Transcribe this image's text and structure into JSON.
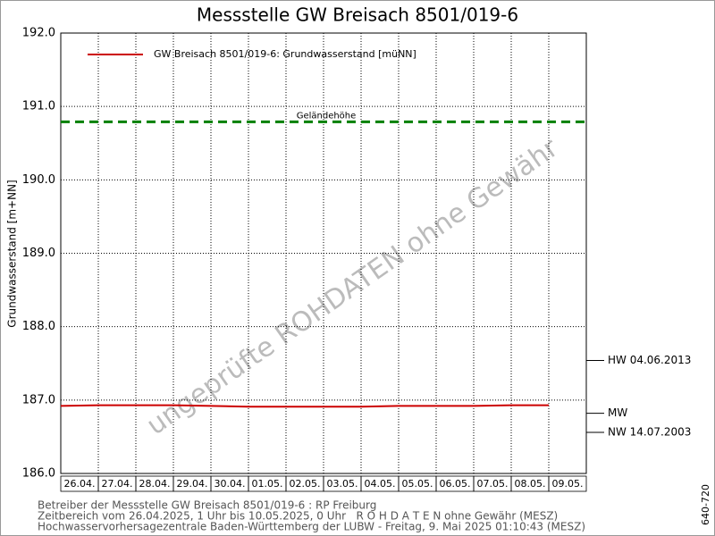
{
  "chart_data": {
    "type": "line",
    "title": "Messstelle GW Breisach 8501/019-6",
    "y_label": "Grundwasserstand [m+NN]",
    "categories": [
      "26.04.",
      "27.04.",
      "28.04.",
      "29.04.",
      "30.04.",
      "01.05.",
      "02.05.",
      "03.05.",
      "04.05.",
      "05.05.",
      "06.05.",
      "07.05.",
      "08.05.",
      "09.05."
    ],
    "series": [
      {
        "name": "GW Breisach 8501/019-6: Grundwasserstand [müNN]",
        "color": "#cc0000",
        "values": [
          186.92,
          186.93,
          186.93,
          186.93,
          186.92,
          186.91,
          186.91,
          186.91,
          186.91,
          186.92,
          186.92,
          186.92,
          186.93,
          186.93
        ]
      }
    ],
    "ylim": [
      186.0,
      192.0
    ],
    "yticks": [
      {
        "value": 186,
        "label": "186.0"
      },
      {
        "value": 187,
        "label": "187.0"
      },
      {
        "value": 188,
        "label": "188.0"
      },
      {
        "value": 189,
        "label": "189.0"
      },
      {
        "value": 190,
        "label": "190.0"
      },
      {
        "value": 191,
        "label": "191.0"
      },
      {
        "value": 192,
        "label": "192.0"
      }
    ],
    "grid": true,
    "reference_line": {
      "label": "Geländehöhe",
      "value": 190.79,
      "color": "#008000"
    },
    "markers": [
      {
        "label": "HW 04.06.2013",
        "value": 187.54
      },
      {
        "label": "MW",
        "value": 186.82
      },
      {
        "label": "NW 14.07.2003",
        "value": 186.56
      }
    ],
    "watermark": "ungeprüfte ROHDATEN ohne Gewähr",
    "footer": [
      "Betreiber der Messstelle GW Breisach 8501/019-6 : RP Freiburg",
      "Zeitbereich vom 26.04.2025, 1 Uhr bis 10.05.2025, 0 Uhr   R O H D A T E N ohne Gewähr (MESZ)",
      "Hochwasservorhersagezentrale Baden-Württemberg der LUBW - Freitag, 9. Mai 2025 01:10:43 (MESZ)"
    ],
    "side_note": "640-720"
  }
}
